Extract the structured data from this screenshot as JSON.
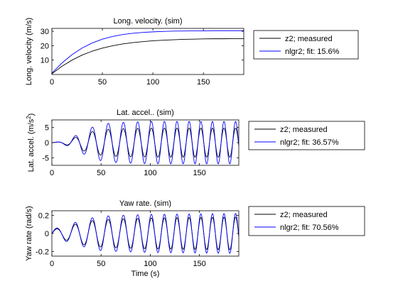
{
  "figure": {
    "xlabel": "Time (s)"
  },
  "chart_data": [
    {
      "type": "line",
      "title": "Long. velocity. (sim)",
      "ylabel": "Long. velocity (m/s)",
      "xlim": [
        0,
        190
      ],
      "ylim": [
        0,
        32
      ],
      "xticks": [
        0,
        50,
        100,
        150
      ],
      "yticks": [
        10,
        20,
        30
      ],
      "x": [
        0,
        10,
        20,
        30,
        40,
        50,
        60,
        70,
        80,
        90,
        100,
        110,
        120,
        130,
        140,
        150,
        160,
        170,
        180,
        190
      ],
      "series": [
        {
          "name": "z2; measured",
          "color": "#000000",
          "values": [
            0.5,
            5.7,
            10.0,
            13.5,
            16.2,
            18.3,
            19.9,
            21.2,
            22.1,
            22.8,
            23.4,
            23.8,
            24.1,
            24.4,
            24.5,
            24.7,
            24.8,
            24.8,
            24.9,
            24.9
          ]
        },
        {
          "name": "nlgr2; fit: 15.6%",
          "color": "#0000ff",
          "values": [
            1.0,
            8.0,
            13.8,
            18.4,
            21.9,
            24.5,
            26.4,
            27.7,
            28.6,
            29.2,
            29.6,
            29.9,
            30.1,
            30.2,
            30.3,
            30.3,
            30.4,
            30.4,
            30.4,
            30.4
          ]
        }
      ],
      "legend": "right"
    },
    {
      "type": "line",
      "title": "Lat. accel.. (sim)",
      "ylabel": "Lat. accel.  (m/s",
      "ylabel_sup": "2",
      "ylabel_end": ")",
      "xlim": [
        0,
        190
      ],
      "ylim": [
        -7.5,
        7.5
      ],
      "xticks": [
        0,
        50,
        100,
        150
      ],
      "yticks": [
        -5,
        0,
        5
      ],
      "series": [
        {
          "name": "z2; measured",
          "color": "#000000",
          "envelope": [
            [
              0,
              0
            ],
            [
              10,
              0.3
            ],
            [
              20,
              1.2
            ],
            [
              30,
              2.5
            ],
            [
              40,
              3.6
            ],
            [
              50,
              4.2
            ],
            [
              60,
              4.5
            ],
            [
              80,
              4.7
            ],
            [
              100,
              4.8
            ],
            [
              190,
              4.8
            ]
          ],
          "freq_start": 0.05,
          "freq_end": 0.085
        },
        {
          "name": "nlgr2; fit: 36.57%",
          "color": "#0000ff",
          "envelope": [
            [
              0,
              0
            ],
            [
              10,
              0.4
            ],
            [
              20,
              1.6
            ],
            [
              30,
              3.4
            ],
            [
              40,
              5.0
            ],
            [
              50,
              6.0
            ],
            [
              60,
              6.5
            ],
            [
              80,
              6.8
            ],
            [
              100,
              7.0
            ],
            [
              190,
              7.0
            ]
          ],
          "freq_start": 0.05,
          "freq_end": 0.085
        }
      ],
      "legend": "right"
    },
    {
      "type": "line",
      "title": "Yaw rate. (sim)",
      "ylabel": "Yaw rate (rad/s)",
      "xlim": [
        0,
        190
      ],
      "ylim": [
        -0.25,
        0.25
      ],
      "xticks": [
        0,
        50,
        100,
        150
      ],
      "yticks": [
        -0.2,
        0,
        0.2
      ],
      "series": [
        {
          "name": "z2; measured",
          "color": "#000000",
          "envelope": [
            [
              0,
              0.04
            ],
            [
              10,
              0.06
            ],
            [
              20,
              0.09
            ],
            [
              30,
              0.12
            ],
            [
              40,
              0.14
            ],
            [
              50,
              0.15
            ],
            [
              70,
              0.16
            ],
            [
              100,
              0.17
            ],
            [
              190,
              0.18
            ]
          ],
          "freq_start": 0.05,
          "freq_end": 0.085
        },
        {
          "name": "nlgr2; fit: 70.56%",
          "color": "#0000ff",
          "envelope": [
            [
              0,
              0.05
            ],
            [
              10,
              0.07
            ],
            [
              20,
              0.11
            ],
            [
              30,
              0.14
            ],
            [
              40,
              0.17
            ],
            [
              50,
              0.19
            ],
            [
              70,
              0.2
            ],
            [
              100,
              0.21
            ],
            [
              190,
              0.22
            ]
          ],
          "freq_start": 0.05,
          "freq_end": 0.085
        }
      ],
      "legend": "right"
    }
  ]
}
